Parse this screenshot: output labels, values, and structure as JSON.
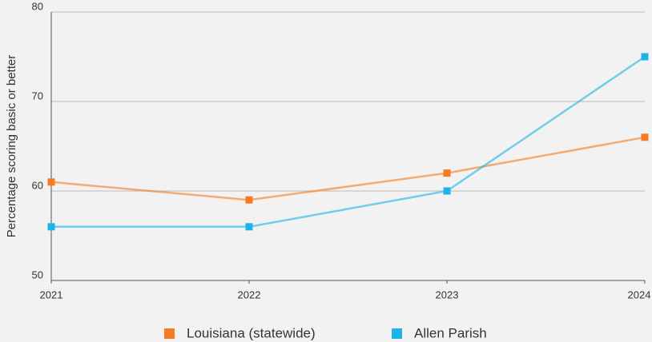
{
  "chart_data": {
    "type": "line",
    "y_label": "Percentage scoring basic or better",
    "x": [
      2021,
      2022,
      2023,
      2024
    ],
    "xlim": [
      2021,
      2024
    ],
    "xticks": [
      2021,
      2022,
      2023,
      2024
    ],
    "ylim": [
      50,
      80
    ],
    "yticks": [
      50,
      60,
      70,
      80
    ],
    "grid": true,
    "legend": "bottom",
    "series": [
      {
        "name": "Louisiana (statewide)",
        "color": "#f47b20",
        "values": [
          61,
          59,
          62,
          66
        ]
      },
      {
        "name": "Allen Parish",
        "color": "#1ab4e8",
        "values": [
          56,
          56,
          60,
          75
        ]
      }
    ]
  }
}
